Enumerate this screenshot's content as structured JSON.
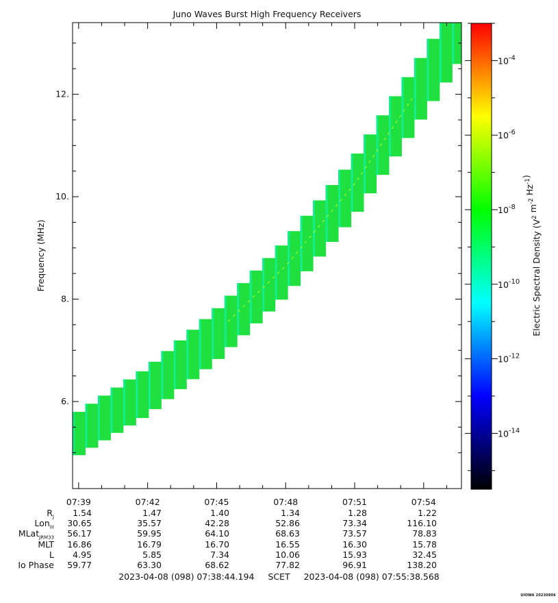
{
  "chart_data": {
    "type": "heatmap",
    "title": "Juno Waves Burst High Frequency Receivers",
    "ylabel": "Frequency (MHz)",
    "ylim": [
      4.3,
      13.4
    ],
    "y_ticks": [
      6,
      8,
      10,
      12
    ],
    "y_tick_labels": [
      "6.",
      "8.",
      "10.",
      "12."
    ],
    "time_range": [
      "07:38:44.194",
      "07:55:38.568"
    ],
    "x_tick_labels": [
      "07:39",
      "07:42",
      "07:45",
      "07:48",
      "07:51",
      "07:54"
    ],
    "x_tick_minutes": [
      39,
      42,
      45,
      48,
      51,
      54
    ],
    "x_start_minute": 38.7366,
    "x_end_minute": 55.6428,
    "colorbar": {
      "label": "Electric Spectral Density (V² m⁻² Hz⁻¹)",
      "label_parts": {
        "prefix": "Electric Spectral Density (V",
        "sup1": "2",
        "mid": " m",
        "sup2": "-2",
        "mid2": " Hz",
        "sup3": "-1",
        "suffix": ")"
      },
      "log_min": -15.5,
      "log_max": -3.0,
      "tick_exponents": [
        -14,
        -12,
        -10,
        -8,
        -6,
        -4
      ],
      "tick_base": "10",
      "tick_exp_labels": [
        "-14",
        "-12",
        "-10",
        "-8",
        "-6",
        "-4"
      ],
      "colors": [
        "#000000",
        "#00007f",
        "#0000ff",
        "#007fff",
        "#00ffff",
        "#00ff7f",
        "#00ff00",
        "#7fff00",
        "#ffff00",
        "#ff7f00",
        "#ff0000"
      ]
    },
    "band": {
      "description_points_minute_mhz": [
        [
          38.74,
          5.3
        ],
        [
          42.0,
          6.2
        ],
        [
          45.0,
          7.3
        ],
        [
          48.0,
          8.6
        ],
        [
          51.0,
          10.2
        ],
        [
          54.0,
          12.2
        ],
        [
          55.64,
          13.3
        ]
      ],
      "main_color": "#20e040",
      "edge_color": "#10f0a0"
    }
  },
  "ephemeris": {
    "rows": [
      {
        "label": "R",
        "sub": "J",
        "values": [
          "1.54",
          "1.47",
          "1.40",
          "1.34",
          "1.28",
          "1.22"
        ]
      },
      {
        "label": "Lon",
        "sub": "III",
        "values": [
          "30.65",
          "35.57",
          "42.28",
          "52.86",
          "73.34",
          "116.10"
        ]
      },
      {
        "label": "MLat",
        "sub": "JRM33",
        "values": [
          "56.17",
          "59.95",
          "64.10",
          "68.63",
          "73.57",
          "78.83"
        ]
      },
      {
        "label": "MLT",
        "sub": "",
        "values": [
          "16.86",
          "16.79",
          "16.70",
          "16.55",
          "16.30",
          "15.78"
        ]
      },
      {
        "label": "L",
        "sub": "",
        "values": [
          "4.95",
          "5.85",
          "7.34",
          "10.06",
          "15.93",
          "32.45"
        ]
      },
      {
        "label": "Io Phase",
        "sub": "",
        "values": [
          "59.77",
          "63.30",
          "68.62",
          "77.82",
          "96.91",
          "138.20"
        ]
      }
    ]
  },
  "footer": {
    "start": "2023-04-08 (098) 07:38:44.194",
    "scet": "SCET",
    "end": "2023-04-08 (098) 07:55:38.568"
  },
  "credit": "UIOWA 20230806"
}
